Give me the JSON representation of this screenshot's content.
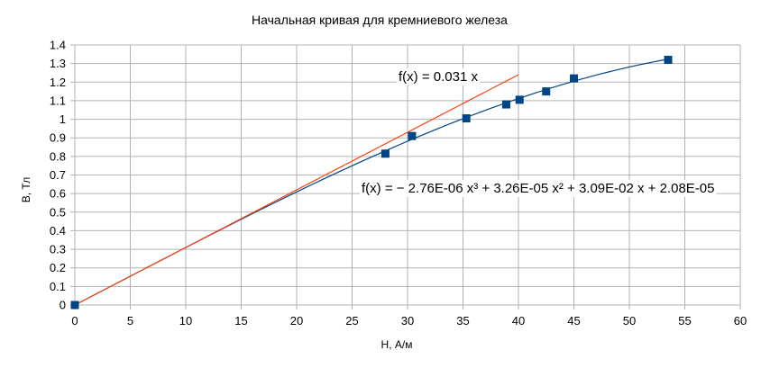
{
  "chart_data": {
    "type": "scatter",
    "title": "Начальная кривая для кремниевого железа",
    "xlabel": "H, А/м",
    "ylabel": "B, Тл",
    "xlim": [
      0,
      60
    ],
    "ylim": [
      0,
      1.4
    ],
    "x_ticks": [
      "0",
      "5",
      "10",
      "15",
      "20",
      "25",
      "30",
      "35",
      "40",
      "45",
      "50",
      "55",
      "60"
    ],
    "y_ticks": [
      "0",
      "0.1",
      "0.2",
      "0.3",
      "0.4",
      "0.5",
      "0.6",
      "0.7",
      "0.8",
      "0.9",
      "1",
      "1.1",
      "1.2",
      "1.3",
      "1.4"
    ],
    "grid": true,
    "series": [
      {
        "points": [
          {
            "x": 0,
            "y": 0
          },
          {
            "x": 28,
            "y": 0.815
          },
          {
            "x": 30.4,
            "y": 0.91
          },
          {
            "x": 35.3,
            "y": 1.005
          },
          {
            "x": 38.9,
            "y": 1.08
          },
          {
            "x": 40.1,
            "y": 1.105
          },
          {
            "x": 42.5,
            "y": 1.15
          },
          {
            "x": 45,
            "y": 1.22
          },
          {
            "x": 53.5,
            "y": 1.32
          }
        ],
        "color": "#004586"
      }
    ],
    "trendlines": [
      {
        "kind": "polynomial",
        "coefficients": [
          2.08e-05,
          0.0309,
          3.26e-05,
          -2.76e-06
        ],
        "x_range": [
          0,
          53.5
        ],
        "color": "#004586",
        "equation": "f(x) = − 2.76E-06 x³ + 3.26E-05 x² + 3.09E-02 x + 2.08E-05"
      },
      {
        "kind": "linear",
        "coefficients": [
          0,
          0.031
        ],
        "x_range": [
          0,
          40
        ],
        "color": "#ff420e",
        "equation": "f(x) = 0.031 x"
      }
    ]
  }
}
